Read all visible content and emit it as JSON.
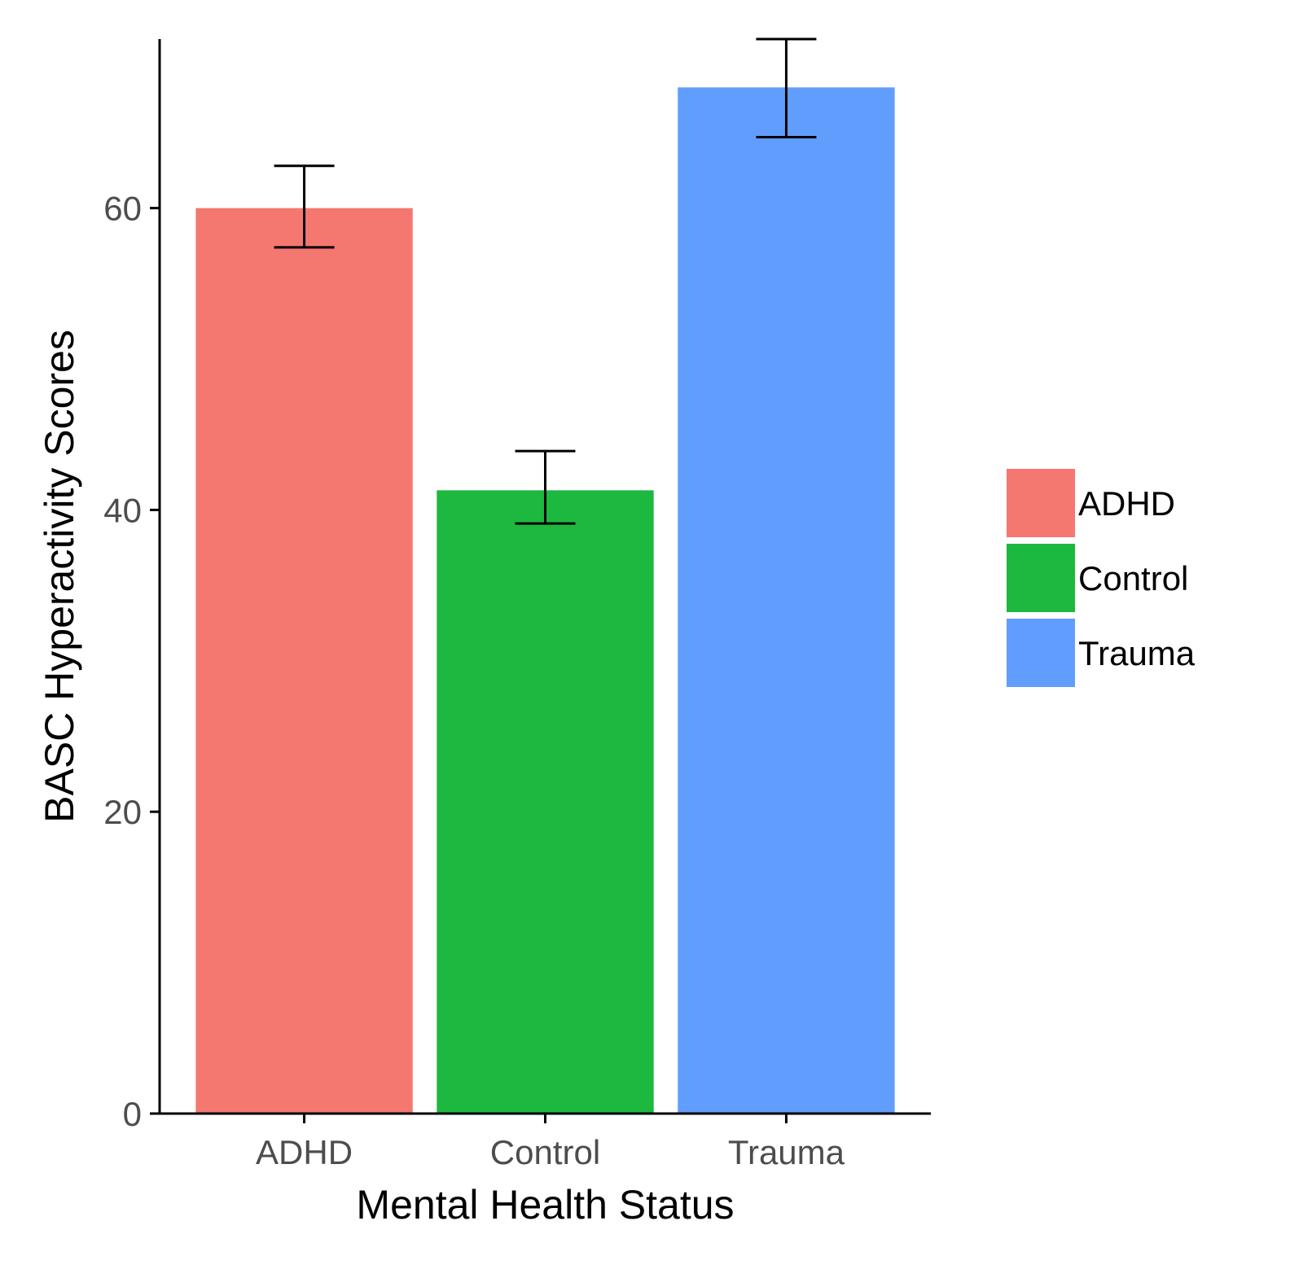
{
  "chart_data": {
    "type": "bar",
    "xlabel": "Mental Health Status",
    "ylabel": "BASC Hyperactivity Scores",
    "categories": [
      "ADHD",
      "Control",
      "Trauma"
    ],
    "values": [
      60.0,
      41.3,
      68.0
    ],
    "error_bars": [
      {
        "low": 57.4,
        "high": 62.8
      },
      {
        "low": 39.1,
        "high": 43.9
      },
      {
        "low": 64.7,
        "high": 71.2
      }
    ],
    "colors": [
      "#F47770",
      "#1DB83F",
      "#619DFC"
    ],
    "ylim": [
      0,
      71.2
    ],
    "yticks": [
      0,
      20,
      40,
      60
    ],
    "grid": false,
    "legend": {
      "placement": "right",
      "entries": [
        {
          "label": "ADHD",
          "color": "#F47770"
        },
        {
          "label": "Control",
          "color": "#1DB83F"
        },
        {
          "label": "Trauma",
          "color": "#619DFC"
        }
      ]
    }
  }
}
